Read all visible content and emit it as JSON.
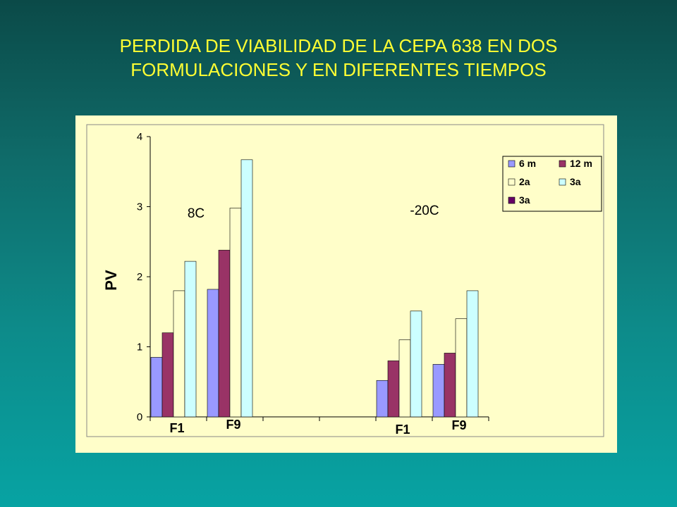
{
  "slide": {
    "title_line1": "PERDIDA DE VIABILIDAD DE LA CEPA 638 EN DOS",
    "title_line2": "FORMULACIONES Y EN DIFERENTES TIEMPOS"
  },
  "chart_data": {
    "type": "bar",
    "title": "",
    "xlabel": "",
    "ylabel": "PV",
    "ylim": [
      0,
      4
    ],
    "yticks": [
      "0",
      "1",
      "2",
      "3",
      "4"
    ],
    "grid": false,
    "legend_position": "top-right",
    "groups": [
      "F1",
      "F9",
      "",
      "",
      "F1",
      "F9"
    ],
    "annotations": [
      "8C",
      "-20C"
    ],
    "series": [
      {
        "name": "6 m",
        "color": "#9999ff",
        "values": [
          0.85,
          1.82,
          null,
          null,
          0.52,
          0.75
        ]
      },
      {
        "name": "12 m",
        "color": "#993366",
        "values": [
          1.2,
          2.38,
          null,
          null,
          0.8,
          0.91
        ]
      },
      {
        "name": "2a",
        "color": "#ffffcc",
        "values": [
          1.8,
          2.98,
          null,
          null,
          1.1,
          1.4
        ]
      },
      {
        "name": "3a",
        "color": "#ccffff",
        "values": [
          2.22,
          3.67,
          null,
          null,
          1.51,
          1.8
        ]
      },
      {
        "name": "3a",
        "color": "#660066",
        "values": [
          null,
          null,
          null,
          null,
          null,
          null
        ]
      }
    ]
  }
}
